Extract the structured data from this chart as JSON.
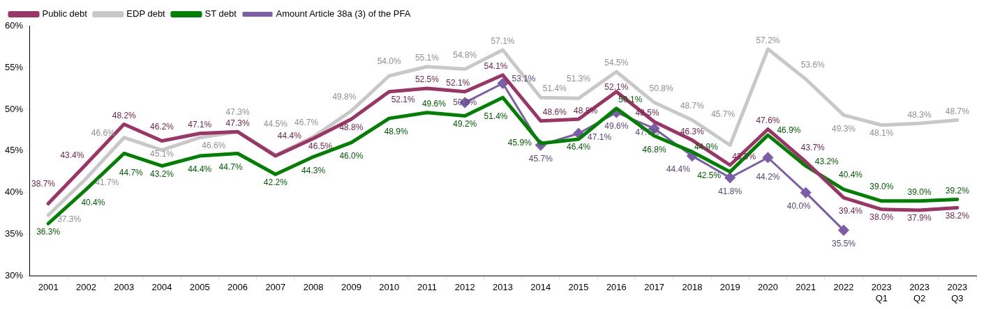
{
  "chart_data": {
    "type": "line",
    "categories": [
      "2001",
      "2002",
      "2003",
      "2004",
      "2005",
      "2006",
      "2007",
      "2008",
      "2009",
      "2010",
      "2011",
      "2012",
      "2013",
      "2014",
      "2015",
      "2016",
      "2017",
      "2018",
      "2019",
      "2020",
      "2021",
      "2022",
      "2023\nQ1",
      "2023\nQ2",
      "2023\nQ3"
    ],
    "ylim": [
      30,
      60
    ],
    "yticks": [
      {
        "value": 30,
        "label": "30%"
      },
      {
        "value": 35,
        "label": "35%"
      },
      {
        "value": 40,
        "label": "40%"
      },
      {
        "value": 45,
        "label": "45%"
      },
      {
        "value": 50,
        "label": "50%"
      },
      {
        "value": 55,
        "label": "55%"
      },
      {
        "value": 60,
        "label": "60%"
      }
    ],
    "grid": false,
    "legend": "top left",
    "marker": "none",
    "line_style": "solid",
    "series": [
      {
        "name": "Public debt",
        "color": "#9b3565",
        "values": [
          38.7,
          43.4,
          48.2,
          46.2,
          47.1,
          47.3,
          44.4,
          46.5,
          48.8,
          52.1,
          52.5,
          52.1,
          54.1,
          48.6,
          48.8,
          52.1,
          48.5,
          46.3,
          43.3,
          47.6,
          43.7,
          39.4,
          38.0,
          37.9,
          38.2
        ],
        "value_labels": [
          "38.7%",
          "43.4%",
          "48.2%",
          "46.2%",
          "47.1%",
          "47.3%",
          "44.4%",
          "46.5%",
          "48.8%",
          "52.1%",
          "52.5%",
          "52.1%",
          "54.1%",
          "48.6%",
          "48.8%",
          "52.1%",
          "48.5%",
          "46.3%",
          "43.3%",
          "47.6%",
          "43.7%",
          "39.4%",
          "38.0%",
          "37.9%",
          "38.2%"
        ]
      },
      {
        "name": "EDP debt",
        "color": "#c8c8c8",
        "values": [
          37.3,
          41.7,
          46.6,
          45.1,
          46.6,
          47.3,
          44.5,
          46.7,
          49.8,
          54.0,
          55.1,
          54.8,
          57.1,
          51.4,
          51.3,
          54.5,
          50.8,
          48.7,
          45.7,
          57.2,
          53.6,
          49.3,
          48.1,
          48.3,
          48.7
        ],
        "value_labels": [
          "37.3%",
          "41.7%",
          "46.6%",
          "45.1%",
          "46.6%",
          "47.3%",
          "44.5%",
          "46.7%",
          "49.8%",
          "54.0%",
          "55.1%",
          "54.8%",
          "57.1%",
          "51.4%",
          "51.3%",
          "54.5%",
          "50.8%",
          "48.7%",
          "45.7%",
          "57.2%",
          "53.6%",
          "49.3%",
          "48.1%",
          "48.3%",
          "48.7%"
        ]
      },
      {
        "name": "ST debt",
        "color": "#008000",
        "values": [
          36.3,
          40.4,
          44.7,
          43.2,
          44.4,
          44.7,
          42.2,
          44.3,
          46.0,
          48.9,
          49.6,
          49.2,
          51.4,
          45.9,
          46.4,
          50.1,
          46.8,
          44.9,
          42.5,
          46.9,
          43.2,
          40.4,
          39.0,
          39.0,
          39.2
        ],
        "value_labels": [
          "36.3%",
          "40.4%",
          "44.7%",
          "43.2%",
          "44.4%",
          "44.7%",
          "42.2%",
          "44.3%",
          "46.0%",
          "48.9%",
          "49.6%",
          "49.2%",
          "51.4%",
          "45.9%",
          "46.4%",
          "50.1%",
          "46.8%",
          "44.9%",
          "42.5%",
          "46.9%",
          "43.2%",
          "40.4%",
          "39.0%",
          "39.0%",
          "39.2%"
        ]
      },
      {
        "name": "Amount Article 38a (3) of the PFA",
        "color": "#7b5ea7",
        "marker": "diamond",
        "values": [
          null,
          null,
          null,
          null,
          null,
          null,
          null,
          null,
          null,
          null,
          null,
          50.8,
          53.1,
          45.7,
          47.1,
          49.6,
          47.7,
          44.4,
          41.8,
          44.2,
          40.0,
          35.5,
          null,
          null,
          null
        ],
        "value_labels": [
          null,
          null,
          null,
          null,
          null,
          null,
          null,
          null,
          null,
          null,
          null,
          "50.8%",
          "53.1%",
          "45.7%",
          "47.1%",
          "49.6%",
          "47.7%",
          "44.4%",
          "41.8%",
          "44.2%",
          "40.0%",
          "35.5%",
          null,
          null,
          null
        ]
      }
    ]
  }
}
